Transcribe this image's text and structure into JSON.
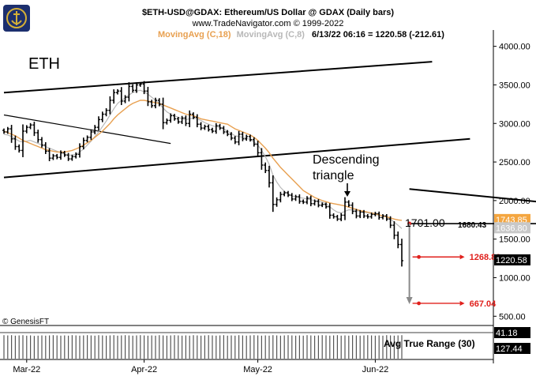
{
  "header": {
    "title": "$ETH-USD@GDAX:  Ethereum/US Dollar @ GDAX  (Daily bars)",
    "copyright": "www.TradeNavigator.com © 1999-2022",
    "ma18_label": "MovingAvg (C,18)",
    "ma8_label": "MovingAvg (C,8)",
    "last_quote": "6/13/22 06:16 = 1220.58 (-212.61)"
  },
  "watermark": "© GenesisFT",
  "colors": {
    "ma18": "#e8a050",
    "ma8": "#b8b8b8",
    "target": "#e0201c",
    "price_badge_ma18": "#f4a640",
    "price_badge_ma8": "#c8c8c8",
    "last_badge": "#000000"
  },
  "annotations": {
    "asset_label": "ETH",
    "pattern_label_1": "Descending",
    "pattern_label_2": "triangle",
    "support_label": "1701.00",
    "support_value_label": "1680.43",
    "target1_label": "1268.80",
    "target2_label": "667.04"
  },
  "badges": {
    "ma18_value": "1743.85",
    "ma8_value": "1636.80",
    "last_value": "1220.58"
  },
  "indicator": {
    "name": "Avg True Range (30)",
    "value_upper": "41.18",
    "value_lower": "127.44"
  },
  "chart_data": {
    "type": "ohlc",
    "ylim": [
      380,
      4150
    ],
    "y_ticks": [
      "4000.00",
      "3500.00",
      "3000.00",
      "2500.00",
      "2000.00",
      "1500.00",
      "1000.00",
      "500.00"
    ],
    "y_tick_values": [
      4000,
      3500,
      3000,
      2500,
      2000,
      1500,
      1000,
      500
    ],
    "x_ticks": [
      "Mar-22",
      "Apr-22",
      "May-22",
      "Jun-22"
    ],
    "x_tick_indices": [
      6,
      37,
      67,
      98
    ],
    "closes": [
      2890,
      2930,
      2800,
      2700,
      2650,
      2900,
      2950,
      2980,
      2880,
      2790,
      2720,
      2640,
      2550,
      2580,
      2560,
      2620,
      2590,
      2540,
      2570,
      2600,
      2700,
      2780,
      2820,
      2890,
      2950,
      3050,
      3120,
      3170,
      3300,
      3400,
      3420,
      3290,
      3340,
      3480,
      3430,
      3500,
      3510,
      3420,
      3280,
      3230,
      3300,
      3250,
      3010,
      3040,
      3100,
      3060,
      3020,
      3070,
      3000,
      3120,
      3080,
      2990,
      2940,
      2960,
      2920,
      2900,
      2970,
      2940,
      2890,
      2860,
      2810,
      2760,
      2860,
      2800,
      2830,
      2790,
      2730,
      2620,
      2460,
      2390,
      2230,
      1950,
      2010,
      2080,
      2100,
      2070,
      2020,
      2050,
      1990,
      1980,
      2030,
      1960,
      1990,
      1940,
      1950,
      1920,
      1810,
      1790,
      1760,
      1810,
      1980,
      1940,
      1860,
      1800,
      1850,
      1800,
      1790,
      1820,
      1830,
      1780,
      1800,
      1760,
      1680,
      1550,
      1430,
      1220
    ],
    "ma18": [
      2900,
      2880,
      2860,
      2840,
      2810,
      2780,
      2760,
      2740,
      2720,
      2700,
      2680,
      2660,
      2650,
      2640,
      2630,
      2630,
      2630,
      2640,
      2650,
      2670,
      2690,
      2720,
      2750,
      2780,
      2820,
      2860,
      2900,
      2950,
      3000,
      3060,
      3110,
      3150,
      3190,
      3230,
      3260,
      3280,
      3300,
      3300,
      3290,
      3280,
      3270,
      3260,
      3240,
      3220,
      3200,
      3180,
      3160,
      3140,
      3120,
      3110,
      3100,
      3080,
      3060,
      3050,
      3040,
      3030,
      3020,
      3010,
      3000,
      2990,
      2960,
      2930,
      2910,
      2890,
      2870,
      2850,
      2820,
      2780,
      2730,
      2680,
      2620,
      2550,
      2490,
      2430,
      2380,
      2330,
      2280,
      2230,
      2180,
      2130,
      2100,
      2070,
      2040,
      2020,
      2000,
      1985,
      1970,
      1960,
      1950,
      1940,
      1930,
      1915,
      1900,
      1885,
      1870,
      1860,
      1850,
      1840,
      1830,
      1815,
      1800,
      1790,
      1775,
      1760,
      1750,
      1744
    ],
    "ma8": [
      2860,
      2850,
      2830,
      2800,
      2770,
      2760,
      2770,
      2780,
      2760,
      2740,
      2720,
      2700,
      2680,
      2660,
      2640,
      2620,
      2600,
      2590,
      2590,
      2600,
      2630,
      2670,
      2720,
      2770,
      2830,
      2890,
      2960,
      3030,
      3110,
      3190,
      3260,
      3300,
      3330,
      3370,
      3400,
      3420,
      3430,
      3410,
      3380,
      3340,
      3300,
      3260,
      3200,
      3150,
      3120,
      3100,
      3080,
      3060,
      3050,
      3060,
      3070,
      3060,
      3040,
      3010,
      2990,
      2970,
      2960,
      2950,
      2930,
      2900,
      2870,
      2840,
      2830,
      2820,
      2810,
      2790,
      2760,
      2720,
      2650,
      2570,
      2470,
      2330,
      2240,
      2170,
      2120,
      2090,
      2060,
      2050,
      2040,
      2030,
      2020,
      2010,
      2000,
      1990,
      1980,
      1960,
      1920,
      1880,
      1850,
      1840,
      1860,
      1880,
      1880,
      1870,
      1860,
      1850,
      1840,
      1830,
      1820,
      1810,
      1800,
      1790,
      1760,
      1720,
      1680,
      1637
    ],
    "upper_channel": [
      [
        0,
        3400
      ],
      [
        113,
        3800
      ]
    ],
    "lower_channel": [
      [
        0,
        2300
      ],
      [
        123,
        2800
      ]
    ],
    "early_trendline": [
      [
        0,
        3110
      ],
      [
        44,
        2740
      ]
    ],
    "triangle_top": [
      [
        107,
        2150
      ],
      [
        148,
        1950
      ]
    ],
    "triangle_base": {
      "value": 1701,
      "from": 107,
      "to": 172
    },
    "target_arrow": {
      "index": 107,
      "from": 1701,
      "to": 667.04
    },
    "target1_value": 1268.8,
    "target2_value": 667.04,
    "atr_series": [
      96,
      95,
      96,
      94,
      95,
      96,
      94,
      95,
      93,
      94,
      95,
      94,
      95,
      96,
      95,
      94,
      95,
      94,
      96,
      95,
      94,
      95,
      96,
      95,
      94,
      96,
      95,
      94,
      95,
      96,
      94,
      95,
      96,
      95,
      94,
      95,
      96,
      95,
      94,
      95,
      94,
      96,
      95,
      94,
      95,
      96,
      95,
      94,
      95,
      94,
      96,
      95,
      94,
      95,
      96,
      95,
      94,
      95,
      96,
      94,
      95,
      94,
      96,
      95,
      94,
      95,
      96,
      95,
      94,
      95,
      94,
      96,
      95,
      94,
      95,
      96,
      95,
      94,
      95,
      94,
      96,
      95,
      94,
      95,
      96,
      95,
      94,
      95,
      96,
      94,
      95,
      94,
      96,
      95,
      94,
      95,
      96,
      95,
      94,
      95,
      94,
      96,
      95,
      94,
      95,
      96
    ]
  }
}
